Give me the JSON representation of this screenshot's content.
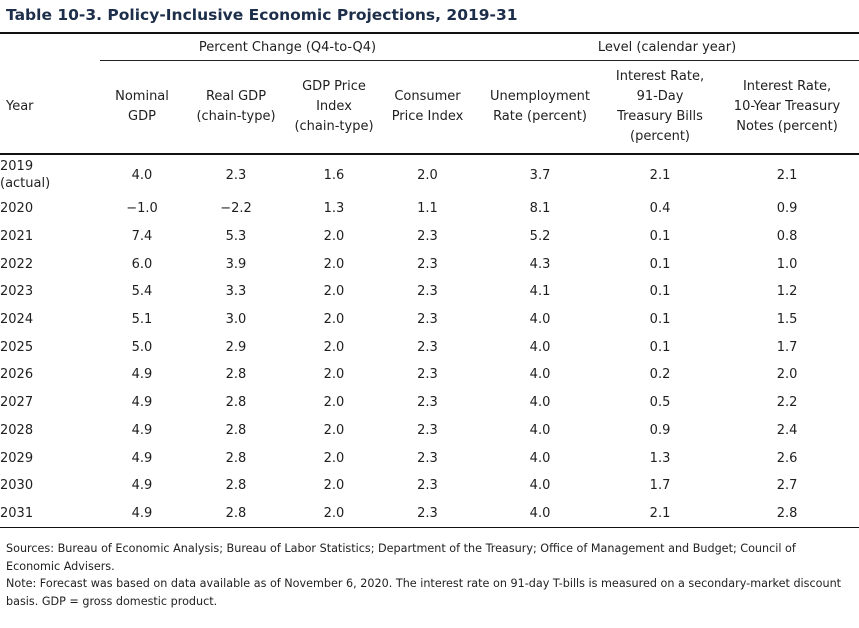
{
  "title": "Table 10-3. Policy-Inclusive Economic Projections, 2019-31",
  "groups": {
    "percent_change": "Percent Change (Q4-to-Q4)",
    "level": "Level (calendar year)"
  },
  "headers": {
    "year": "Year",
    "nominal_gdp": [
      "Nominal",
      "GDP"
    ],
    "real_gdp": [
      "Real GDP",
      "(chain-type)"
    ],
    "gdp_price": [
      "GDP Price",
      "Index",
      "(chain-type)"
    ],
    "cpi": [
      "Consumer",
      "Price Index"
    ],
    "unemployment": [
      "Unemployment",
      "Rate (percent)"
    ],
    "tbills": [
      "Interest Rate,",
      "91-Day",
      "Treasury Bills",
      "(percent)"
    ],
    "tnotes": [
      "Interest Rate,",
      "10-Year Treasury",
      "Notes (percent)"
    ]
  },
  "rows": [
    {
      "year": [
        "2019",
        "(actual)"
      ],
      "values": [
        "4.0",
        "2.3",
        "1.6",
        "2.0",
        "3.7",
        "2.1",
        "2.1"
      ]
    },
    {
      "year": [
        "2020"
      ],
      "values": [
        "−1.0",
        "−2.2",
        "1.3",
        "1.1",
        "8.1",
        "0.4",
        "0.9"
      ]
    },
    {
      "year": [
        "2021"
      ],
      "values": [
        "7.4",
        "5.3",
        "2.0",
        "2.3",
        "5.2",
        "0.1",
        "0.8"
      ]
    },
    {
      "year": [
        "2022"
      ],
      "values": [
        "6.0",
        "3.9",
        "2.0",
        "2.3",
        "4.3",
        "0.1",
        "1.0"
      ]
    },
    {
      "year": [
        "2023"
      ],
      "values": [
        "5.4",
        "3.3",
        "2.0",
        "2.3",
        "4.1",
        "0.1",
        "1.2"
      ]
    },
    {
      "year": [
        "2024"
      ],
      "values": [
        "5.1",
        "3.0",
        "2.0",
        "2.3",
        "4.0",
        "0.1",
        "1.5"
      ]
    },
    {
      "year": [
        "2025"
      ],
      "values": [
        "5.0",
        "2.9",
        "2.0",
        "2.3",
        "4.0",
        "0.1",
        "1.7"
      ]
    },
    {
      "year": [
        "2026"
      ],
      "values": [
        "4.9",
        "2.8",
        "2.0",
        "2.3",
        "4.0",
        "0.2",
        "2.0"
      ]
    },
    {
      "year": [
        "2027"
      ],
      "values": [
        "4.9",
        "2.8",
        "2.0",
        "2.3",
        "4.0",
        "0.5",
        "2.2"
      ]
    },
    {
      "year": [
        "2028"
      ],
      "values": [
        "4.9",
        "2.8",
        "2.0",
        "2.3",
        "4.0",
        "0.9",
        "2.4"
      ]
    },
    {
      "year": [
        "2029"
      ],
      "values": [
        "4.9",
        "2.8",
        "2.0",
        "2.3",
        "4.0",
        "1.3",
        "2.6"
      ]
    },
    {
      "year": [
        "2030"
      ],
      "values": [
        "4.9",
        "2.8",
        "2.0",
        "2.3",
        "4.0",
        "1.7",
        "2.7"
      ]
    },
    {
      "year": [
        "2031"
      ],
      "values": [
        "4.9",
        "2.8",
        "2.0",
        "2.3",
        "4.0",
        "2.1",
        "2.8"
      ]
    }
  ],
  "notes": {
    "sources": "Sources: Bureau of Economic Analysis; Bureau of Labor Statistics; Department of the Treasury; Office of Management and Budget; Council of Economic Advisers.",
    "note": "Note: Forecast was based on data available as of November 6, 2020. The interest rate on 91-day T-bills is measured on a secondary-market discount basis.  GDP = gross domestic product."
  }
}
